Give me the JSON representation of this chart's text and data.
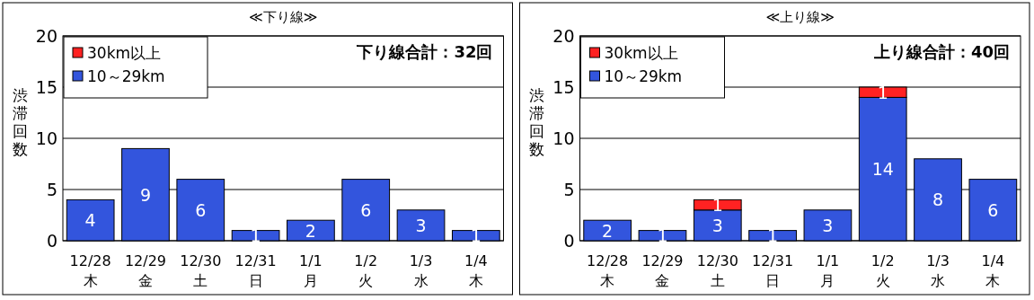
{
  "chart_data": [
    {
      "type": "bar",
      "title": "≪下り線≫",
      "ylabel": "渋滞回数",
      "stacked": true,
      "legend": "top left",
      "grid": "y",
      "categories": [
        "12/28\n木",
        "12/29\n金",
        "12/30\n土",
        "12/31\n日",
        "1/1\n月",
        "1/2\n火",
        "1/3\n水",
        "1/4\n木"
      ],
      "ylim": [
        0,
        20
      ],
      "yticks": [
        0,
        5,
        10,
        15,
        20
      ],
      "annotations": [
        "下り線合計：32回"
      ],
      "series": [
        {
          "name": "10～29km",
          "color": "#3355dd",
          "values": [
            4,
            9,
            6,
            1,
            2,
            6,
            3,
            1
          ],
          "value_labels": [
            "4",
            "9",
            "6",
            "1",
            "2",
            "6",
            "3",
            "1"
          ]
        },
        {
          "name": "30km以上",
          "color": "#ff2222",
          "values": [
            0,
            0,
            0,
            0,
            0,
            0,
            0,
            0
          ],
          "value_labels": [
            null,
            null,
            null,
            null,
            null,
            null,
            null,
            null
          ]
        }
      ]
    },
    {
      "type": "bar",
      "title": "≪上り線≫",
      "ylabel": "渋滞回数",
      "stacked": true,
      "legend": "top left",
      "grid": "y",
      "categories": [
        "12/28\n木",
        "12/29\n金",
        "12/30\n土",
        "12/31\n日",
        "1/1\n月",
        "1/2\n火",
        "1/3\n水",
        "1/4\n木"
      ],
      "ylim": [
        0,
        20
      ],
      "yticks": [
        0,
        5,
        10,
        15,
        20
      ],
      "annotations": [
        "上り線合計：40回"
      ],
      "series": [
        {
          "name": "10～29km",
          "color": "#3355dd",
          "values": [
            2,
            1,
            3,
            1,
            3,
            14,
            8,
            6
          ],
          "value_labels": [
            "2",
            "1",
            "3",
            "1",
            "3",
            "14",
            "8",
            "6"
          ]
        },
        {
          "name": "30km以上",
          "color": "#ff2222",
          "values": [
            0,
            0,
            1,
            0,
            0,
            1,
            0,
            0
          ],
          "value_labels": [
            null,
            null,
            "1",
            null,
            null,
            "1",
            null,
            null
          ]
        }
      ]
    }
  ]
}
